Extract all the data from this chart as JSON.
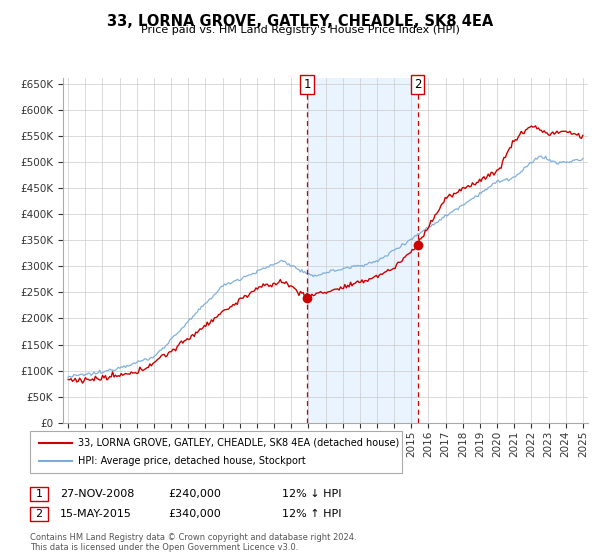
{
  "title": "33, LORNA GROVE, GATLEY, CHEADLE, SK8 4EA",
  "subtitle": "Price paid vs. HM Land Registry's House Price Index (HPI)",
  "ylim": [
    0,
    660000
  ],
  "xlim": [
    1994.7,
    2025.3
  ],
  "yticks": [
    0,
    50000,
    100000,
    150000,
    200000,
    250000,
    300000,
    350000,
    400000,
    450000,
    500000,
    550000,
    600000,
    650000
  ],
  "ytick_labels": [
    "£0",
    "£50K",
    "£100K",
    "£150K",
    "£200K",
    "£250K",
    "£300K",
    "£350K",
    "£400K",
    "£450K",
    "£500K",
    "£550K",
    "£600K",
    "£650K"
  ],
  "xticks": [
    1995,
    1996,
    1997,
    1998,
    1999,
    2000,
    2001,
    2002,
    2003,
    2004,
    2005,
    2006,
    2007,
    2008,
    2009,
    2010,
    2011,
    2012,
    2013,
    2014,
    2015,
    2016,
    2017,
    2018,
    2019,
    2020,
    2021,
    2022,
    2023,
    2024,
    2025
  ],
  "sale1_x": 2008.92,
  "sale1_y": 240000,
  "sale1_label": "1",
  "sale1_date": "27-NOV-2008",
  "sale1_price": "£240,000",
  "sale1_hpi": "12% ↓ HPI",
  "sale2_x": 2015.37,
  "sale2_y": 340000,
  "sale2_label": "2",
  "sale2_date": "15-MAY-2015",
  "sale2_price": "£340,000",
  "sale2_hpi": "12% ↑ HPI",
  "house_color": "#cc0000",
  "hpi_color": "#7aacdc",
  "vline_color": "#cc0000",
  "shade_color": "#ddeeff",
  "marker_color": "#cc0000",
  "legend_label_house": "33, LORNA GROVE, GATLEY, CHEADLE, SK8 4EA (detached house)",
  "legend_label_hpi": "HPI: Average price, detached house, Stockport",
  "footer1": "Contains HM Land Registry data © Crown copyright and database right 2024.",
  "footer2": "This data is licensed under the Open Government Licence v3.0.",
  "background_color": "#ffffff",
  "plot_bg_color": "#ffffff",
  "grid_color": "#cccccc"
}
